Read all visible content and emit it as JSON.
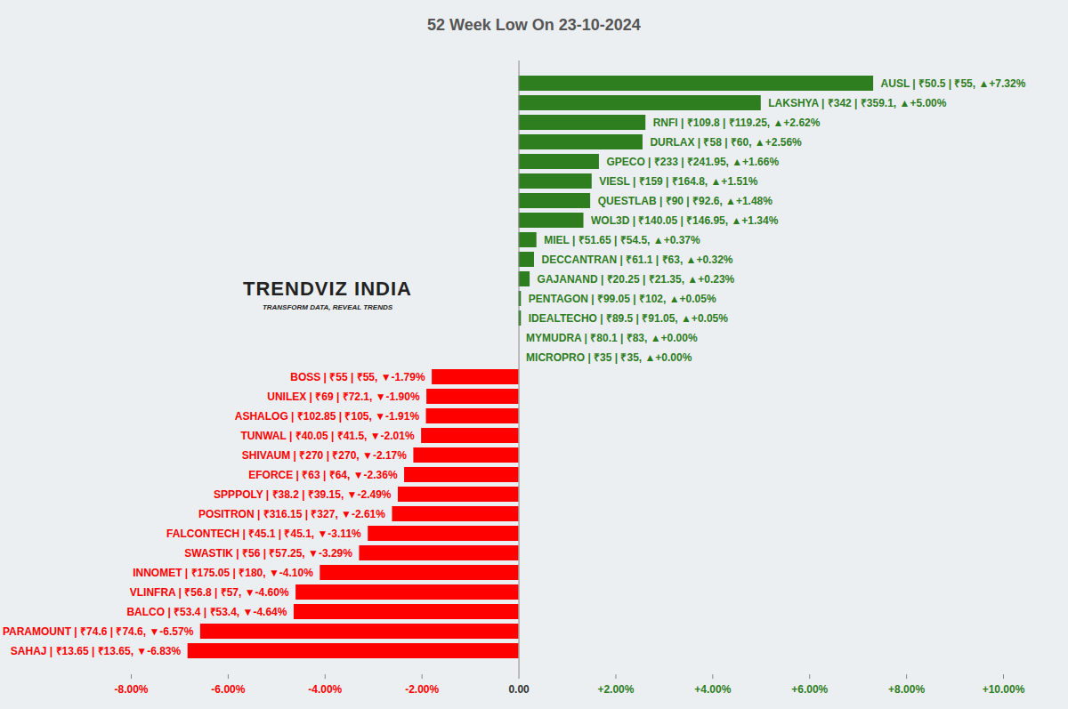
{
  "chart_data": {
    "type": "bar",
    "orientation": "horizontal",
    "title": "52 Week Low On 23-10-2024",
    "annotations": [
      "TRENDVIZ INDIA",
      "TRANSFORM DATA, REVEAL TRENDS"
    ],
    "categories": [
      "AUSL",
      "LAKSHYA",
      "RNFI",
      "DURLAX",
      "GPECO",
      "VIESL",
      "QUESTLAB",
      "WOL3D",
      "MIEL",
      "DECCANTRAN",
      "GAJANAND",
      "PENTAGON",
      "IDEALTECHO",
      "MYMUDRA",
      "MICROPRO",
      "BOSS",
      "UNILEX",
      "ASHALOG",
      "TUNWAL",
      "SHIVAUM",
      "EFORCE",
      "SPPPOLY",
      "POSITRON",
      "FALCONTECH",
      "SWASTIK",
      "INNOMET",
      "VLINFRA",
      "BALCO",
      "PARAMOUNT",
      "SAHAJ"
    ],
    "values": [
      7.32,
      5.0,
      2.62,
      2.56,
      1.66,
      1.51,
      1.48,
      1.34,
      0.37,
      0.32,
      0.23,
      0.05,
      0.05,
      0.0,
      0.0,
      -1.79,
      -1.9,
      -1.91,
      -2.01,
      -2.17,
      -2.36,
      -2.49,
      -2.61,
      -3.11,
      -3.29,
      -4.1,
      -4.6,
      -4.64,
      -6.57,
      -6.83
    ],
    "value_labels": [
      "AUSL | ₹50.5 | ₹55, ▲+7.32%",
      "LAKSHYA | ₹342 | ₹359.1, ▲+5.00%",
      "RNFI | ₹109.8 | ₹119.25, ▲+2.62%",
      "DURLAX | ₹58 | ₹60, ▲+2.56%",
      "GPECO | ₹233 | ₹241.95, ▲+1.66%",
      "VIESL | ₹159 | ₹164.8, ▲+1.51%",
      "QUESTLAB | ₹90 | ₹92.6, ▲+1.48%",
      "WOL3D | ₹140.05 | ₹146.95, ▲+1.34%",
      "MIEL | ₹51.65 | ₹54.5, ▲+0.37%",
      "DECCANTRAN | ₹61.1 | ₹63, ▲+0.32%",
      "GAJANAND | ₹20.25 | ₹21.35, ▲+0.23%",
      "PENTAGON | ₹99.05 | ₹102, ▲+0.05%",
      "IDEALTECHO | ₹89.5 | ₹91.05, ▲+0.05%",
      "MYMUDRA | ₹80.1 | ₹83, ▲+0.00%",
      "MICROPRO | ₹35 | ₹35, ▲+0.00%",
      "BOSS | ₹55 | ₹55, ▼-1.79%",
      "UNILEX | ₹69 | ₹72.1, ▼-1.90%",
      "ASHALOG | ₹102.85 | ₹105, ▼-1.91%",
      "TUNWAL | ₹40.05 | ₹41.5, ▼-2.01%",
      "SHIVAUM | ₹270 | ₹270, ▼-2.17%",
      "EFORCE | ₹63 | ₹64, ▼-2.36%",
      "SPPPOLY | ₹38.2 | ₹39.15, ▼-2.49%",
      "POSITRON | ₹316.15 | ₹327, ▼-2.61%",
      "FALCONTECH | ₹45.1 | ₹45.1, ▼-3.11%",
      "SWASTIK | ₹56 | ₹57.25, ▼-3.29%",
      "INNOMET | ₹175.05 | ₹180, ▼-4.10%",
      "VLINFRA | ₹56.8 | ₹57, ▼-4.60%",
      "BALCO | ₹53.4 | ₹53.4, ▼-4.64%",
      "PARAMOUNT | ₹74.6 | ₹74.6, ▼-6.57%",
      "SAHAJ | ₹13.65 | ₹13.65, ▼-6.83%"
    ],
    "colors": [
      "#2e7d1f",
      "#2e7d1f",
      "#2e7d1f",
      "#2e7d1f",
      "#2e7d1f",
      "#2e7d1f",
      "#2e7d1f",
      "#2e7d1f",
      "#2e7d1f",
      "#2e7d1f",
      "#2e7d1f",
      "#2e7d1f",
      "#2e7d1f",
      "#2e7d1f",
      "#2e7d1f",
      "#ff0000",
      "#ff0000",
      "#ff0000",
      "#ff0000",
      "#ff0000",
      "#ff0000",
      "#ff0000",
      "#ff0000",
      "#ff0000",
      "#ff0000",
      "#ff0000",
      "#ff0000",
      "#ff0000",
      "#ff0000",
      "#ff0000"
    ],
    "xlim": [
      -8,
      10
    ],
    "xticks": [
      {
        "value": -8,
        "label": "-8.00%"
      },
      {
        "value": -6,
        "label": "-6.00%"
      },
      {
        "value": -4,
        "label": "-4.00%"
      },
      {
        "value": -2,
        "label": "-2.00%"
      },
      {
        "value": 0,
        "label": "0.00"
      },
      {
        "value": 2,
        "label": "+2.00%"
      },
      {
        "value": 4,
        "label": "+4.00%"
      },
      {
        "value": 6,
        "label": "+6.00%"
      },
      {
        "value": 8,
        "label": "+8.00%"
      },
      {
        "value": 10,
        "label": "+10.00%"
      }
    ],
    "grid": false,
    "data_labels": true,
    "tick_labels": "x"
  }
}
